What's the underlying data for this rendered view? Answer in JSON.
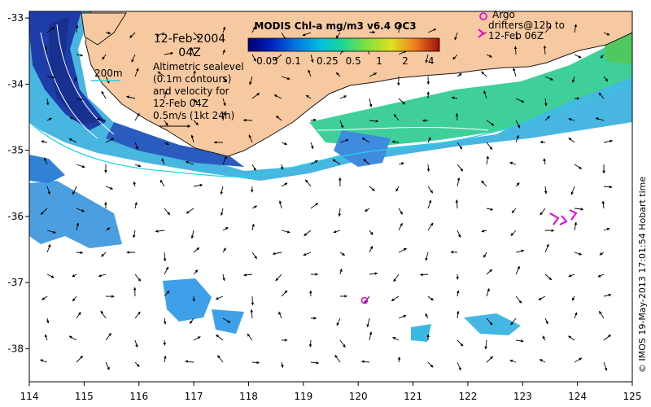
{
  "map": {
    "title": "MODIS Chl-a mg/m3 v6.4 OC3",
    "date": "12-Feb-2004",
    "time": "04Z",
    "depth_contour_label": "200m",
    "altimetry_note": [
      "Altimetric sealevel",
      "(0.1m contours)",
      "and velocity for",
      "12-Feb 04Z"
    ],
    "velocity_scale_label": "0.5m/s (1kt 24h)",
    "argo_note": [
      "Argo",
      "drifters@12h to",
      "12-Feb 06Z"
    ],
    "credit": "© IMOS 19-May-2013 17:01:54 Hobart time",
    "colorbar": {
      "tick_labels": [
        "0.05",
        "0.1",
        "0.25",
        "0.5",
        "1",
        "2",
        "4"
      ],
      "tick_values": [
        0.05,
        0.1,
        0.25,
        0.5,
        1,
        2,
        4
      ],
      "range": [
        0.03,
        5
      ]
    },
    "lon_ticks": [
      114,
      115,
      116,
      117,
      118,
      119,
      120,
      121,
      122,
      123,
      124,
      125
    ],
    "lat_ticks": [
      -33,
      -34,
      -35,
      -36,
      -37,
      -38
    ],
    "lon_range": [
      114,
      125
    ],
    "lat_range": [
      -38.5,
      -32.9
    ],
    "colors": {
      "land": "#f7c9a0",
      "coast_line": "#1a1a1a",
      "shelf_contour": "#22d3e6",
      "argo": "#e000e0",
      "chl_low": "#2a3da6",
      "chl_mid": "#3db0e0",
      "chl_high": "#4fc860"
    }
  }
}
